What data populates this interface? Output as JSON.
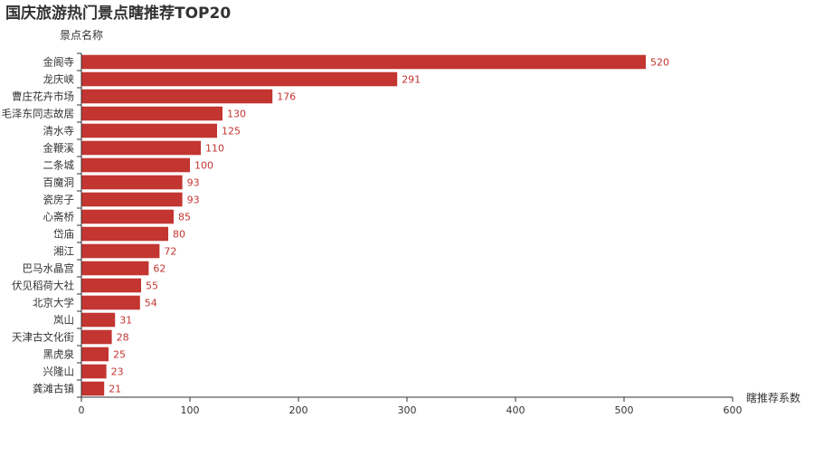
{
  "chart_data": {
    "type": "bar",
    "orientation": "horizontal",
    "title": "国庆旅游热门景点瞎推荐TOP20",
    "ylabel": "景点名称",
    "xlabel": "瞎推荐系数",
    "xlim": [
      0,
      600
    ],
    "xticks": [
      0,
      100,
      200,
      300,
      400,
      500,
      600
    ],
    "grid": false,
    "bar_color": "#c23531",
    "categories": [
      "金阁寺",
      "龙庆峡",
      "曹庄花卉市场",
      "毛泽东同志故居",
      "清水寺",
      "金鞭溪",
      "二条城",
      "百魔洞",
      "瓷房子",
      "心斋桥",
      "岱庙",
      "湘江",
      "巴马水晶宫",
      "伏见稻荷大社",
      "北京大学",
      "岚山",
      "天津古文化街",
      "黑虎泉",
      "兴隆山",
      "龚滩古镇"
    ],
    "values": [
      520,
      291,
      176,
      130,
      125,
      110,
      100,
      93,
      93,
      85,
      80,
      72,
      62,
      55,
      54,
      31,
      28,
      25,
      23,
      21
    ]
  }
}
